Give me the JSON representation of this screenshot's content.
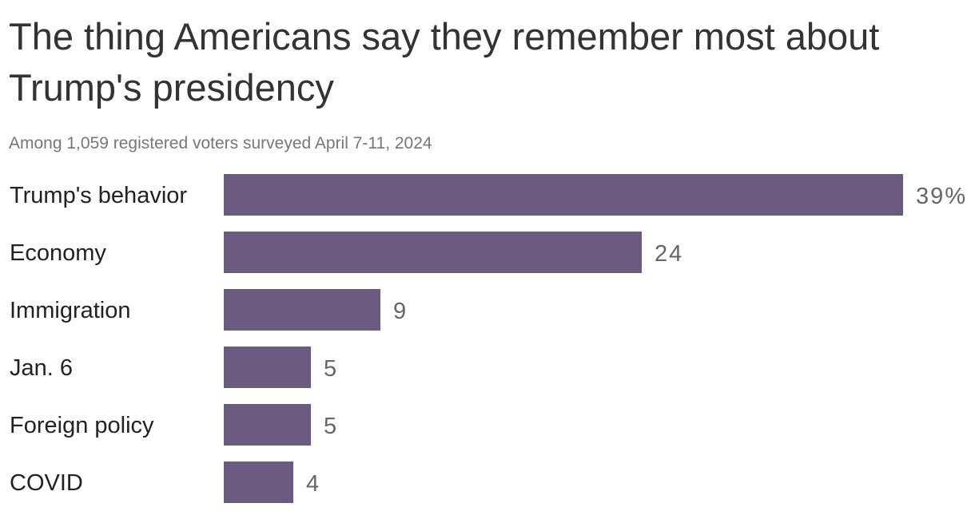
{
  "title": "The thing Americans say they remember most about Trump's presidency",
  "subtitle": "Among 1,059 registered voters surveyed April 7-11, 2024",
  "colors": {
    "bar": "#6b5b80",
    "title": "#333333",
    "subtitle": "#777777",
    "value_label": "#666666",
    "category_label": "#222222"
  },
  "chart_data": {
    "type": "bar",
    "orientation": "horizontal",
    "title": "The thing Americans say they remember most about Trump's presidency",
    "subtitle": "Among 1,059 registered voters surveyed April 7-11, 2024",
    "categories": [
      "Trump's behavior",
      "Economy",
      "Immigration",
      "Jan. 6",
      "Foreign policy",
      "COVID"
    ],
    "values": [
      39,
      24,
      9,
      5,
      5,
      4
    ],
    "value_labels": [
      "39%",
      "24",
      "9",
      "5",
      "5",
      "4"
    ],
    "xlim": [
      0,
      39
    ],
    "grid": false,
    "legend": "none",
    "xlabel": "",
    "ylabel": ""
  }
}
